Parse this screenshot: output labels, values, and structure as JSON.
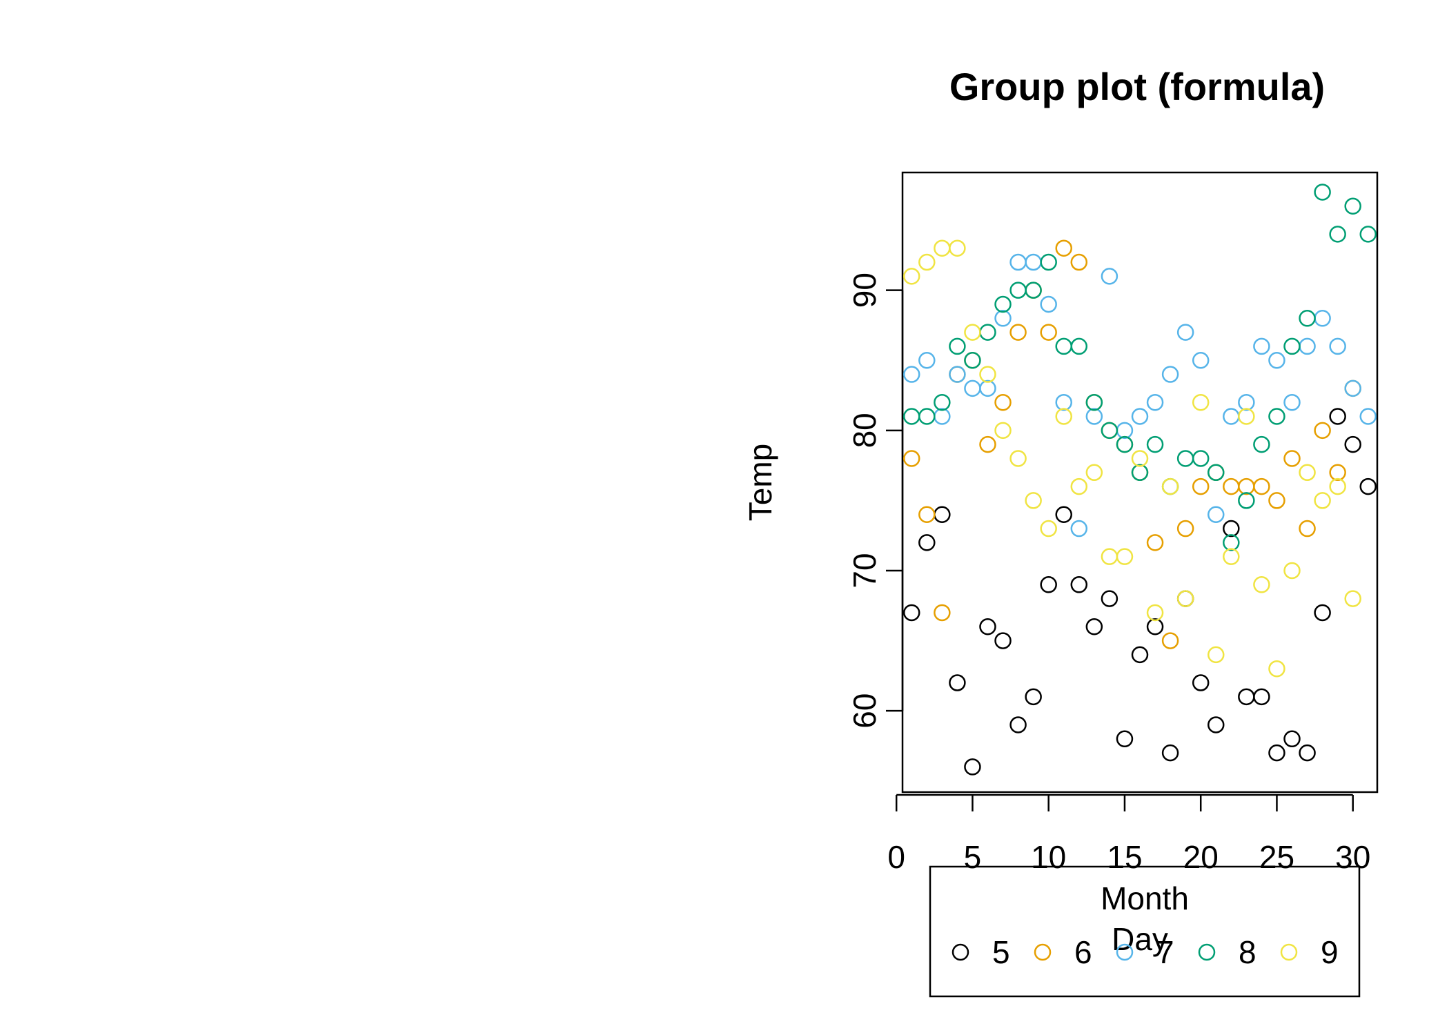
{
  "chart_data": {
    "type": "scatter",
    "title": "Group plot (formula)",
    "xlabel": "Day",
    "ylabel": "Temp",
    "xlim": [
      0.4,
      31.6
    ],
    "ylim": [
      54.2,
      98.4
    ],
    "x_ticks": [
      0,
      5,
      10,
      15,
      20,
      25,
      30
    ],
    "y_ticks": [
      60,
      70,
      80,
      90
    ],
    "grid": false,
    "legend": {
      "title": "Month",
      "placement": "bottom",
      "entries": [
        {
          "label": "5",
          "color": "#000000"
        },
        {
          "label": "6",
          "color": "#E69F00"
        },
        {
          "label": "7",
          "color": "#56B4E9"
        },
        {
          "label": "8",
          "color": "#009E73"
        },
        {
          "label": "9",
          "color": "#F0E442"
        }
      ]
    },
    "series": [
      {
        "name": "5",
        "color": "#000000",
        "x": [
          1,
          2,
          3,
          4,
          5,
          6,
          7,
          8,
          9,
          10,
          11,
          12,
          13,
          14,
          15,
          16,
          17,
          18,
          19,
          20,
          21,
          22,
          23,
          24,
          25,
          26,
          27,
          28,
          29,
          30,
          31
        ],
        "y": [
          67,
          72,
          74,
          62,
          56,
          66,
          65,
          59,
          61,
          69,
          74,
          69,
          66,
          68,
          58,
          64,
          66,
          57,
          68,
          62,
          59,
          73,
          61,
          61,
          57,
          58,
          57,
          67,
          81,
          79,
          76
        ]
      },
      {
        "name": "6",
        "color": "#E69F00",
        "x": [
          1,
          2,
          3,
          4,
          5,
          6,
          7,
          8,
          9,
          10,
          11,
          12,
          13,
          14,
          15,
          16,
          17,
          18,
          19,
          20,
          21,
          22,
          23,
          24,
          25,
          26,
          27,
          28,
          29,
          30
        ],
        "y": [
          78,
          74,
          67,
          84,
          85,
          79,
          82,
          87,
          90,
          87,
          93,
          92,
          82,
          80,
          79,
          77,
          72,
          65,
          73,
          76,
          77,
          76,
          76,
          76,
          75,
          78,
          73,
          80,
          77,
          83
        ]
      },
      {
        "name": "7",
        "color": "#56B4E9",
        "x": [
          1,
          2,
          3,
          4,
          5,
          6,
          7,
          8,
          9,
          10,
          11,
          12,
          13,
          14,
          15,
          16,
          17,
          18,
          19,
          20,
          21,
          22,
          23,
          24,
          25,
          26,
          27,
          28,
          29,
          30,
          31
        ],
        "y": [
          84,
          85,
          81,
          84,
          83,
          83,
          88,
          92,
          92,
          89,
          82,
          73,
          81,
          91,
          80,
          81,
          82,
          84,
          87,
          85,
          74,
          81,
          82,
          86,
          85,
          82,
          86,
          88,
          86,
          83,
          81
        ]
      },
      {
        "name": "8",
        "color": "#009E73",
        "x": [
          1,
          2,
          3,
          4,
          5,
          6,
          7,
          8,
          9,
          10,
          11,
          12,
          13,
          14,
          15,
          16,
          17,
          18,
          19,
          20,
          21,
          22,
          23,
          24,
          25,
          26,
          27,
          28,
          29,
          30,
          31
        ],
        "y": [
          81,
          81,
          82,
          86,
          85,
          87,
          89,
          90,
          90,
          92,
          86,
          86,
          82,
          80,
          79,
          77,
          79,
          76,
          78,
          78,
          77,
          72,
          75,
          79,
          81,
          86,
          88,
          97,
          94,
          96,
          94
        ]
      },
      {
        "name": "9",
        "color": "#F0E442",
        "x": [
          1,
          2,
          3,
          4,
          5,
          6,
          7,
          8,
          9,
          10,
          11,
          12,
          13,
          14,
          15,
          16,
          17,
          18,
          19,
          20,
          21,
          22,
          23,
          24,
          25,
          26,
          27,
          28,
          29,
          30
        ],
        "y": [
          91,
          92,
          93,
          93,
          87,
          84,
          80,
          78,
          75,
          73,
          81,
          76,
          77,
          71,
          71,
          78,
          67,
          76,
          68,
          82,
          64,
          71,
          81,
          69,
          63,
          70,
          77,
          75,
          76,
          68
        ]
      }
    ]
  }
}
